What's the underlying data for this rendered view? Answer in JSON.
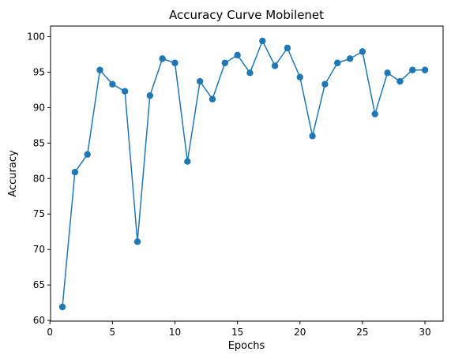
{
  "chart_data": {
    "type": "line",
    "title": "Accuracy Curve Mobilenet",
    "xlabel": "Epochs",
    "ylabel": "Accuracy",
    "xlim": [
      0.05,
      31.45
    ],
    "ylim": [
      59.9,
      101.5
    ],
    "xticks": [
      0,
      5,
      10,
      15,
      20,
      25,
      30
    ],
    "yticks": [
      60,
      65,
      70,
      75,
      80,
      85,
      90,
      95,
      100
    ],
    "grid": false,
    "series": [
      {
        "color": "#1f77b4",
        "marker": "circle",
        "x": [
          1,
          2,
          3,
          4,
          5,
          6,
          7,
          8,
          9,
          10,
          11,
          12,
          13,
          14,
          15,
          16,
          17,
          18,
          19,
          20,
          21,
          22,
          23,
          24,
          25,
          26,
          27,
          28,
          29,
          30
        ],
        "y": [
          61.9,
          80.9,
          83.4,
          95.3,
          93.3,
          92.3,
          71.1,
          91.7,
          96.9,
          96.3,
          82.4,
          93.7,
          91.2,
          96.3,
          97.4,
          94.9,
          99.4,
          95.9,
          98.4,
          94.3,
          86.0,
          93.3,
          96.3,
          96.9,
          97.9,
          89.1,
          94.9,
          93.7,
          95.3,
          95.3
        ]
      }
    ]
  }
}
